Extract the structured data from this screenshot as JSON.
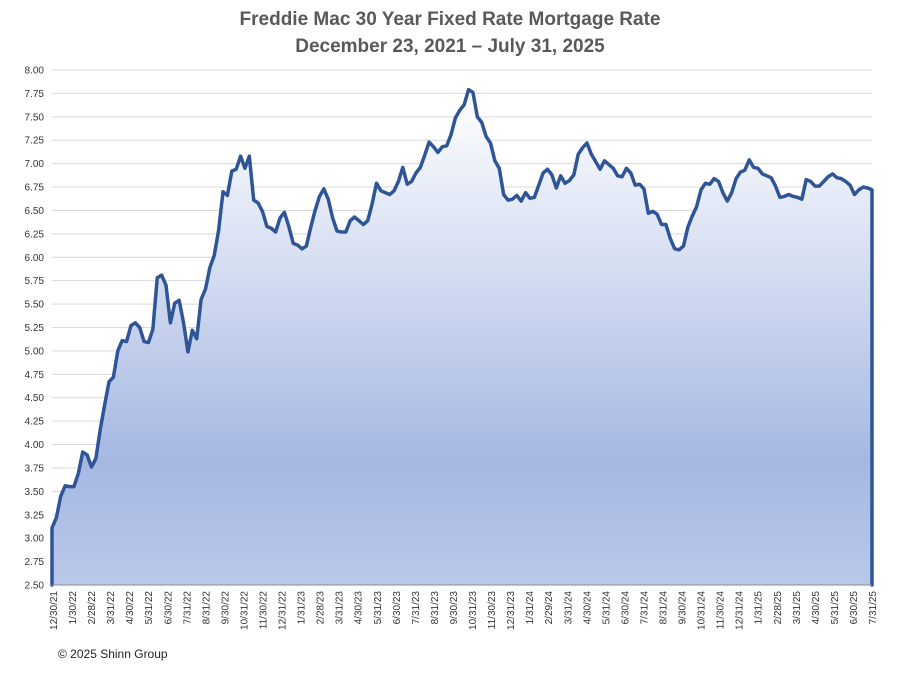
{
  "chart_data": {
    "type": "area",
    "title": "Freddie Mac 30 Year Fixed Rate Mortgage Rate",
    "subtitle": "December 23, 2021 –  July  31, 2025",
    "xlabel": "",
    "ylabel": "",
    "ylim": [
      2.5,
      8.0
    ],
    "y_ticks": [
      "8.00",
      "7.75",
      "7.50",
      "7.25",
      "7.00",
      "6.75",
      "6.50",
      "6.25",
      "6.00",
      "5.75",
      "5.50",
      "5.25",
      "5.00",
      "4.75",
      "4.50",
      "4.25",
      "4.00",
      "3.75",
      "3.50",
      "3.25",
      "3.00",
      "2.75",
      "2.50"
    ],
    "x_tick_labels": [
      "12/30/21",
      "1/30/22",
      "2/28/22",
      "3/31/22",
      "4/30/22",
      "5/31/22",
      "6/30/22",
      "7/31/22",
      "8/31/22",
      "9/30/22",
      "10/31/22",
      "11/30/22",
      "12/31/22",
      "1/31/23",
      "2/28/23",
      "3/31/23",
      "4/30/23",
      "5/31/23",
      "6/30/23",
      "7/31/23",
      "8/31/23",
      "9/30/23",
      "10/31/23",
      "11/30/23",
      "12/31/23",
      "1/31/24",
      "2/29/24",
      "3/31/24",
      "4/30/24",
      "5/31/24",
      "6/30/24",
      "7/31/24",
      "8/31/24",
      "9/30/24",
      "10/31/24",
      "11/30/24",
      "12/31/24",
      "1/31/25",
      "2/28/25",
      "3/31/25",
      "4/30/25",
      "5/31/25",
      "6/30/25",
      "7/31/25"
    ],
    "grid": true,
    "legend": "none",
    "series": [
      {
        "color": "#2f5597",
        "fill_top": "#ffffff",
        "fill_bottom": "#a6b8e2",
        "values": [
          3.11,
          3.22,
          3.45,
          3.56,
          3.55,
          3.55,
          3.69,
          3.92,
          3.89,
          3.76,
          3.85,
          4.16,
          4.42,
          4.67,
          4.72,
          5.0,
          5.11,
          5.1,
          5.27,
          5.3,
          5.25,
          5.1,
          5.09,
          5.23,
          5.78,
          5.81,
          5.7,
          5.3,
          5.51,
          5.54,
          5.3,
          4.99,
          5.22,
          5.13,
          5.55,
          5.66,
          5.89,
          6.02,
          6.29,
          6.7,
          6.66,
          6.92,
          6.94,
          7.08,
          6.95,
          7.08,
          6.61,
          6.58,
          6.49,
          6.33,
          6.31,
          6.27,
          6.42,
          6.48,
          6.33,
          6.15,
          6.13,
          6.09,
          6.12,
          6.32,
          6.5,
          6.65,
          6.73,
          6.62,
          6.42,
          6.28,
          6.27,
          6.27,
          6.39,
          6.43,
          6.39,
          6.35,
          6.39,
          6.57,
          6.79,
          6.71,
          6.69,
          6.67,
          6.71,
          6.81,
          6.96,
          6.78,
          6.81,
          6.9,
          6.96,
          7.09,
          7.23,
          7.18,
          7.12,
          7.18,
          7.19,
          7.31,
          7.49,
          7.57,
          7.63,
          7.79,
          7.76,
          7.5,
          7.44,
          7.29,
          7.22,
          7.03,
          6.95,
          6.67,
          6.61,
          6.62,
          6.66,
          6.6,
          6.69,
          6.63,
          6.64,
          6.77,
          6.9,
          6.94,
          6.88,
          6.74,
          6.87,
          6.79,
          6.82,
          6.88,
          7.1,
          7.17,
          7.22,
          7.1,
          7.02,
          6.94,
          7.03,
          6.99,
          6.95,
          6.87,
          6.86,
          6.95,
          6.9,
          6.77,
          6.78,
          6.73,
          6.47,
          6.49,
          6.46,
          6.35,
          6.35,
          6.2,
          6.09,
          6.08,
          6.12,
          6.32,
          6.44,
          6.54,
          6.72,
          6.79,
          6.78,
          6.84,
          6.81,
          6.69,
          6.6,
          6.69,
          6.84,
          6.91,
          6.93,
          7.04,
          6.96,
          6.95,
          6.89,
          6.87,
          6.85,
          6.76,
          6.64,
          6.65,
          6.67,
          6.65,
          6.64,
          6.62,
          6.83,
          6.81,
          6.76,
          6.76,
          6.81,
          6.86,
          6.89,
          6.85,
          6.84,
          6.81,
          6.77,
          6.67,
          6.72,
          6.75,
          6.74,
          6.72
        ]
      }
    ]
  },
  "footer": {
    "copyright": "© 2025 Shinn Group"
  }
}
